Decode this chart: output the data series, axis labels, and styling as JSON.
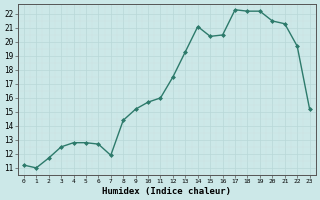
{
  "x": [
    0,
    1,
    2,
    3,
    4,
    5,
    6,
    7,
    8,
    9,
    10,
    11,
    12,
    13,
    14,
    15,
    16,
    17,
    18,
    19,
    20,
    21,
    22,
    23
  ],
  "y": [
    11.2,
    11.0,
    11.7,
    12.5,
    12.8,
    12.8,
    12.7,
    11.9,
    14.4,
    15.2,
    15.7,
    16.0,
    17.5,
    19.3,
    21.1,
    20.4,
    20.5,
    22.3,
    22.2,
    22.2,
    21.5,
    21.3,
    19.7,
    15.2
  ],
  "xlabel": "Humidex (Indice chaleur)",
  "xlim": [
    -0.5,
    23.5
  ],
  "ylim": [
    10.5,
    22.7
  ],
  "yticks": [
    11,
    12,
    13,
    14,
    15,
    16,
    17,
    18,
    19,
    20,
    21,
    22
  ],
  "xticks": [
    0,
    1,
    2,
    3,
    4,
    5,
    6,
    7,
    8,
    9,
    10,
    11,
    12,
    13,
    14,
    15,
    16,
    17,
    18,
    19,
    20,
    21,
    22,
    23
  ],
  "line_color": "#2d7a6b",
  "bg_color": "#cce8e8",
  "grid_major_color": "#b8d8d8",
  "grid_minor_color": "#cce0e0",
  "marker": "D",
  "marker_size": 2.0,
  "line_width": 1.0
}
